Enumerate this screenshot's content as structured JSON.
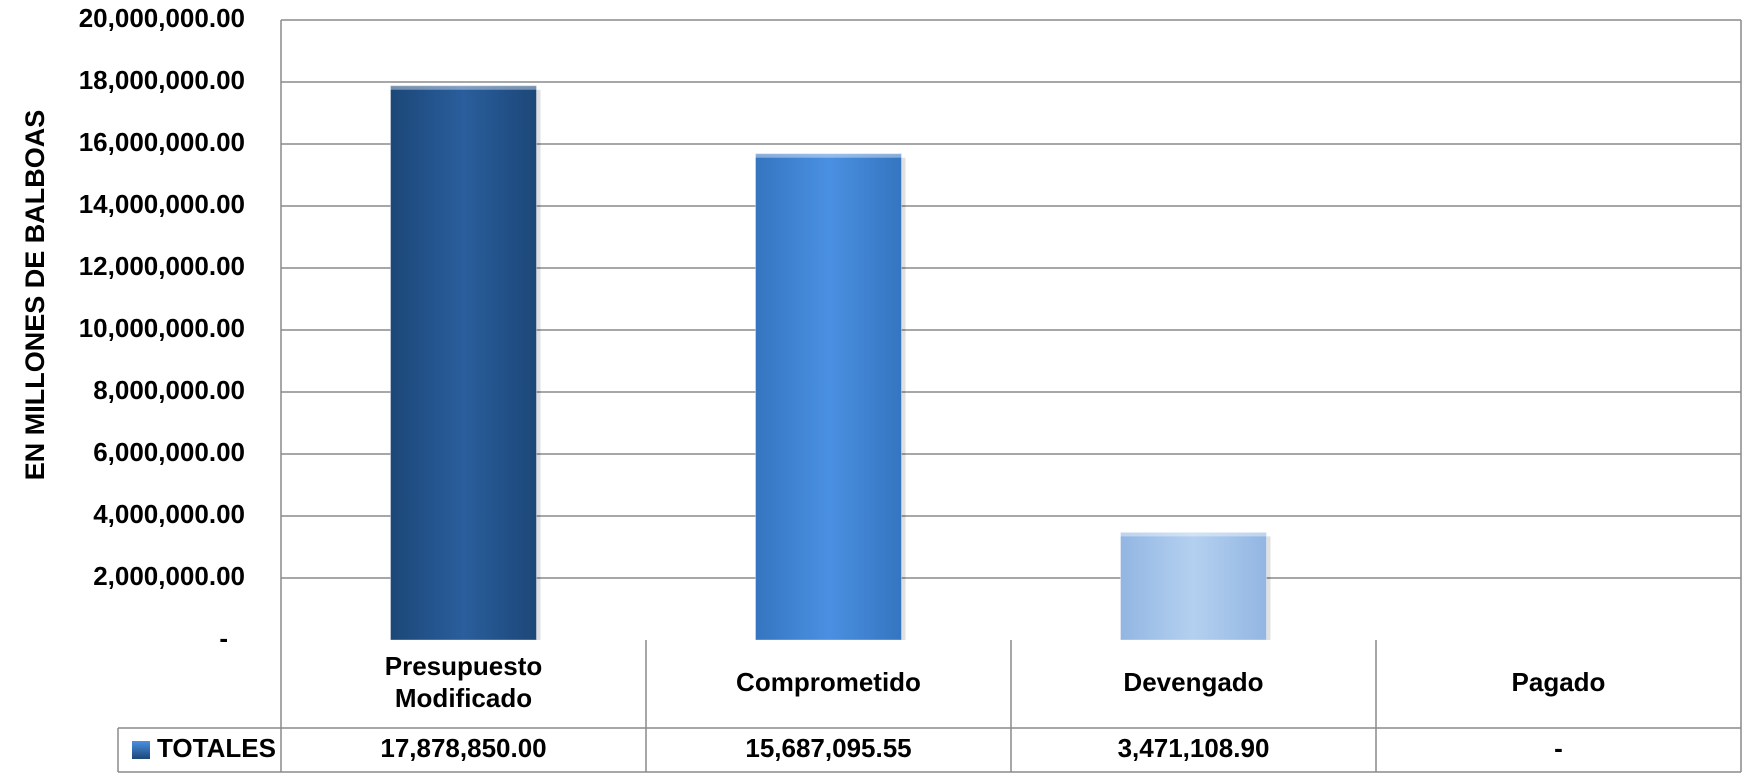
{
  "chart_data": {
    "type": "bar",
    "ylabel": "EN MILLONES DE BALBOAS",
    "ylim": [
      0,
      20000000
    ],
    "y_ticks": [
      "-",
      "2,000,000.00",
      "4,000,000.00",
      "6,000,000.00",
      "8,000,000.00",
      "10,000,000.00",
      "12,000,000.00",
      "14,000,000.00",
      "16,000,000.00",
      "18,000,000.00",
      "20,000,000.00"
    ],
    "grid": true,
    "categories": [
      "Presupuesto Modificado",
      "Comprometido",
      "Devengado",
      "Pagado"
    ],
    "series": [
      {
        "name": "TOTALES",
        "values": [
          17878850.0,
          15687095.55,
          3471108.9,
          0
        ],
        "labels": [
          "17,878,850.00",
          "15,687,095.55",
          "3,471,108.90",
          "-"
        ],
        "colors": [
          "#25568f",
          "#4388d8",
          "#a8c6ea",
          "#cccccc"
        ]
      }
    ],
    "legend_placement": "data-table"
  }
}
